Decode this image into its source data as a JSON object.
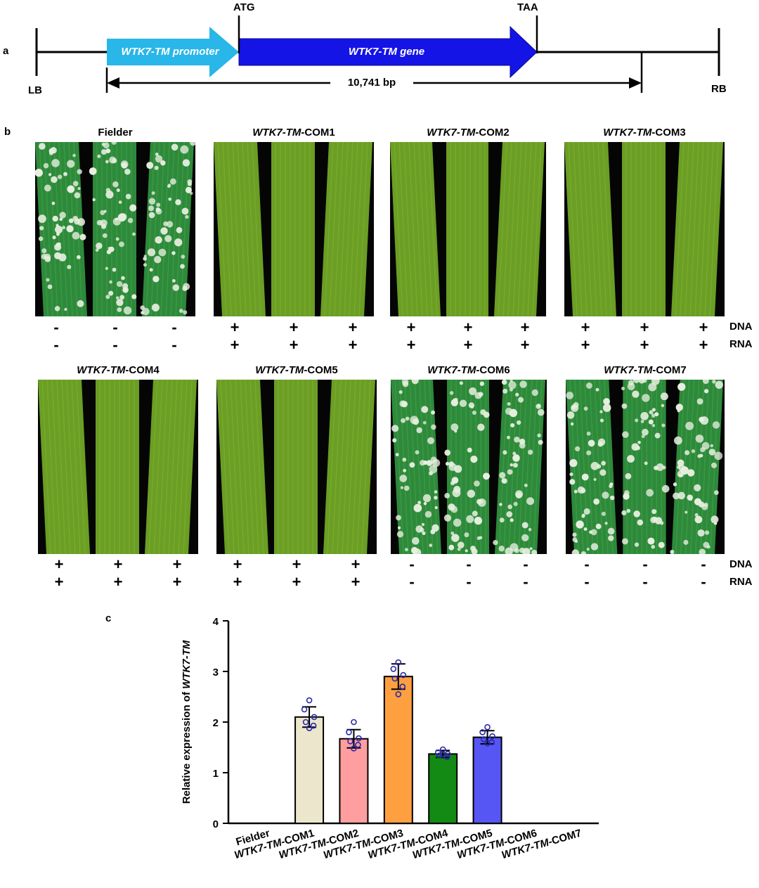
{
  "panel_a": {
    "letter": "a",
    "atg": "ATG",
    "taa": "TAA",
    "lb": "LB",
    "rb": "RB",
    "promoter_label": "WTK7-TM promoter",
    "gene_label": "WTK7-TM gene",
    "length_label": "10,741 bp",
    "promoter_color": "#29b6e8",
    "gene_color": "#1414e6"
  },
  "panel_b": {
    "letter": "b",
    "dna_label": "DNA",
    "rna_label": "RNA",
    "panels": [
      {
        "italic": "",
        "suffix": "Fielder",
        "dna": "-",
        "rna": "-",
        "infected": true
      },
      {
        "italic": "WTK7-TM",
        "suffix": "-COM1",
        "dna": "+",
        "rna": "+",
        "infected": false
      },
      {
        "italic": "WTK7-TM",
        "suffix": "-COM2",
        "dna": "+",
        "rna": "+",
        "infected": false
      },
      {
        "italic": "WTK7-TM",
        "suffix": "-COM3",
        "dna": "+",
        "rna": "+",
        "infected": false
      },
      {
        "italic": "WTK7-TM",
        "suffix": "-COM4",
        "dna": "+",
        "rna": "+",
        "infected": false
      },
      {
        "italic": "WTK7-TM",
        "suffix": "-COM5",
        "dna": "+",
        "rna": "+",
        "infected": false
      },
      {
        "italic": "WTK7-TM",
        "suffix": "-COM6",
        "dna": "-",
        "rna": "-",
        "infected": true
      },
      {
        "italic": "WTK7-TM",
        "suffix": "-COM7",
        "dna": "-",
        "rna": "-",
        "infected": true
      }
    ]
  },
  "panel_c": {
    "letter": "c"
  },
  "chart_data": {
    "type": "bar",
    "ylabel_prefix": "Relative expression of ",
    "ylabel_italic": "WTK7-TM",
    "ylim": [
      0,
      4
    ],
    "yticks": [
      0,
      1,
      2,
      3,
      4
    ],
    "categories": [
      "Fielder",
      "WTK7-TM-COM1",
      "WTK7-TM-COM2",
      "WTK7-TM-COM3",
      "WTK7-TM-COM4",
      "WTK7-TM-COM5",
      "WTK7-TM-COM6",
      "WTK7-TM-COM7"
    ],
    "values": [
      0,
      2.1,
      1.67,
      2.9,
      1.37,
      1.7,
      0,
      0
    ],
    "errors": [
      0,
      0.2,
      0.18,
      0.25,
      0.07,
      0.13,
      0,
      0
    ],
    "colors": [
      "#ffffff",
      "#ece6cc",
      "#ff9e9e",
      "#ffa040",
      "#138a13",
      "#5656f5",
      "#ffffff",
      "#ffffff"
    ],
    "points": [
      [],
      [
        2.43,
        2.25,
        2.1,
        2.0,
        1.93,
        1.88
      ],
      [
        2.0,
        1.8,
        1.68,
        1.62,
        1.55,
        1.48
      ],
      [
        3.18,
        3.05,
        2.93,
        2.86,
        2.7,
        2.55
      ],
      [
        1.46,
        1.4,
        1.37,
        1.34,
        1.31,
        1.36
      ],
      [
        1.9,
        1.8,
        1.72,
        1.66,
        1.6,
        1.58
      ],
      [],
      []
    ],
    "point_color": "#2a2aa8"
  }
}
